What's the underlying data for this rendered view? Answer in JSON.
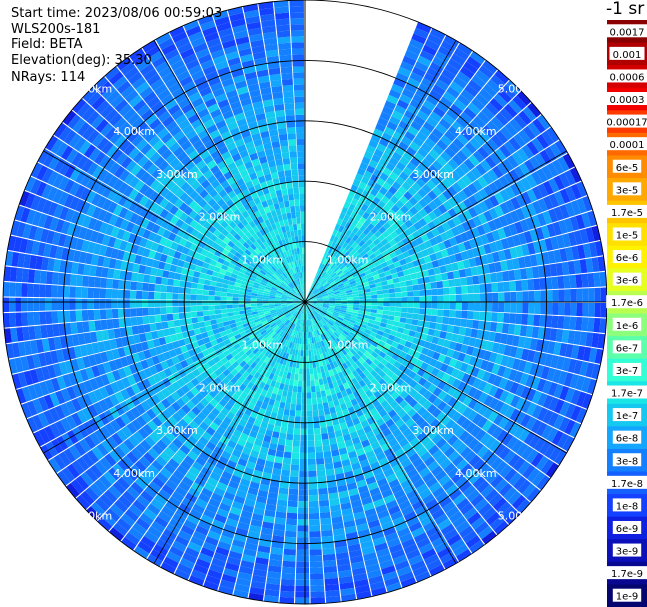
{
  "header": {
    "start_time": "Start time: 2023/08/06 00:59:03",
    "instrument": "WLS200s-181",
    "field": "Field: BETA",
    "elevation": "Elevation(deg): 35.30",
    "nrays": "NRays: 114"
  },
  "colorbar": {
    "unit_label": "-1 sr",
    "ticks": [
      "0.0017",
      "0.001",
      "0.0006",
      "0.0003",
      "0.00017",
      "0.0001",
      "6e-5",
      "3e-5",
      "1.7e-5",
      "1e-5",
      "6e-6",
      "3e-6",
      "1.7e-6",
      "1e-6",
      "6e-7",
      "3e-7",
      "1.7e-7",
      "1e-7",
      "6e-8",
      "3e-8",
      "1.7e-8",
      "1e-8",
      "6e-9",
      "3e-9",
      "1.7e-9",
      "1e-9"
    ],
    "colors": [
      "#8b0000",
      "#b00000",
      "#d40000",
      "#f20000",
      "#ff3a00",
      "#ff6a00",
      "#ff8c00",
      "#ffa800",
      "#ffc400",
      "#ffe000",
      "#fff200",
      "#e6ff20",
      "#b8ff50",
      "#8cff7c",
      "#5cffaa",
      "#33ffd6",
      "#1ae6e6",
      "#14c8f0",
      "#12a6ff",
      "#1480ff",
      "#1660ff",
      "#1440ff",
      "#1020e0",
      "#0c10b8",
      "#080890",
      "#050570"
    ]
  },
  "chart_data": {
    "type": "heatmap",
    "projection": "polar PPI",
    "range_rings_km": [
      1.0,
      2.0,
      3.0,
      4.0,
      5.0
    ],
    "range_labels": [
      "1.00km",
      "2.00km",
      "3.00km",
      "4.00km",
      "5.00km"
    ],
    "max_range_km": 5.0,
    "n_rays": 114,
    "azimuth_gap_deg": [
      0,
      22
    ],
    "spoke_step_deg": 30,
    "value_field": "BETA",
    "value_scale": "log",
    "value_range": [
      1e-09,
      0.0017
    ],
    "typical_values_by_range": [
      {
        "range_km": 0.5,
        "value": 1.7e-07
      },
      {
        "range_km": 1.5,
        "value": 1.7e-07
      },
      {
        "range_km": 2.5,
        "value": 1e-07
      },
      {
        "range_km": 3.5,
        "value": 6e-08
      },
      {
        "range_km": 4.5,
        "value": 3e-08
      },
      {
        "range_km": 5.0,
        "value": 1.7e-08
      }
    ]
  }
}
